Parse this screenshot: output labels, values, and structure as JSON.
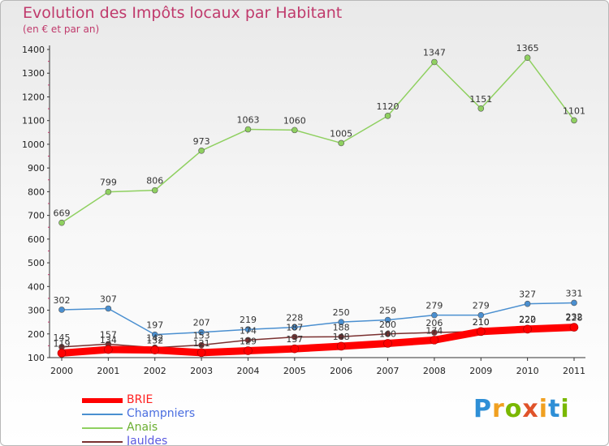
{
  "chart_data": {
    "type": "line",
    "title": "Evolution des Impôts locaux par Habitant",
    "subtitle": "(en € et par an)",
    "x": [
      2000,
      2001,
      2002,
      2003,
      2004,
      2005,
      2006,
      2007,
      2008,
      2009,
      2010,
      2011
    ],
    "ylim": [
      100,
      1400
    ],
    "yticks": [
      100,
      200,
      300,
      400,
      500,
      600,
      700,
      800,
      900,
      1000,
      1100,
      1200,
      1300,
      1400
    ],
    "grid": false,
    "legend_position": "bottom-left",
    "series": [
      {
        "name": "BRIE",
        "color": "#ff0000",
        "values": [
          119,
          134,
          132,
          121,
          129,
          137,
          148,
          160,
          174,
          210,
          220,
          228
        ],
        "labels": [
          "119",
          "134",
          "132",
          "121",
          "129",
          "137",
          "148",
          "160",
          "174",
          "210",
          "220",
          "228"
        ]
      },
      {
        "name": "Champniers",
        "color": "#4a8fd0",
        "values": [
          302,
          307,
          197,
          207,
          219,
          228,
          250,
          259,
          279,
          279,
          327,
          331
        ],
        "labels": [
          "302",
          "307",
          "197",
          "207",
          "219",
          "228",
          "250",
          "259",
          "279",
          "279",
          "327",
          "331"
        ]
      },
      {
        "name": "Anais",
        "color": "#8fd060",
        "values": [
          669,
          799,
          806,
          973,
          1063,
          1060,
          1005,
          1120,
          1347,
          1151,
          1365,
          1101
        ],
        "labels": [
          "669",
          "799",
          "806",
          "973",
          "1063",
          "1060",
          "1005",
          "1120",
          "1347",
          "1151",
          "1365",
          "1101"
        ]
      },
      {
        "name": "Jauldes",
        "color": "#7a3030",
        "values": [
          145,
          157,
          142,
          153,
          174,
          187,
          188,
          200,
          206,
          210,
          222,
          232
        ],
        "labels": [
          "145",
          "157",
          "142",
          "153",
          "174",
          "187",
          "188",
          "200",
          "206",
          "210",
          "222",
          "232"
        ]
      }
    ]
  },
  "legend": {
    "items": [
      {
        "label": "BRIE",
        "color": "#ff0000",
        "text_color": "#ff2020"
      },
      {
        "label": "Champniers",
        "color": "#4a8fd0",
        "text_color": "#4a6ee0"
      },
      {
        "label": "Anais",
        "color": "#8fd060",
        "text_color": "#6aae30"
      },
      {
        "label": "Jauldes",
        "color": "#7a3030",
        "text_color": "#5a5ae0"
      }
    ]
  },
  "logo": {
    "text": "Proxiti",
    "parts": [
      "P",
      "r",
      "o",
      "x",
      "i",
      "t",
      "i"
    ]
  }
}
